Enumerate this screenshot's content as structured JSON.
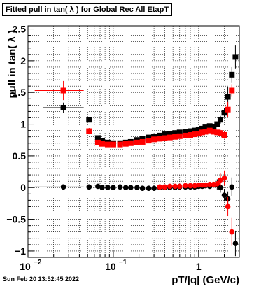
{
  "title": "Fitted pull in tan( λ ) for Global Rec All EtapT",
  "footer": "Sun Feb 20 13:52:45 2022",
  "chart_data": {
    "type": "scatter",
    "title": "Fitted pull in tan( λ ) for Global Rec All EtapT",
    "xlabel": "pT/|q| (GeV/c)",
    "ylabel": "pull in tan( λ )",
    "xscale": "log",
    "xlim": [
      0.01,
      3.0
    ],
    "ylim": [
      -1.1,
      2.55
    ],
    "grid": true,
    "legend": "none",
    "x_ticks": [
      {
        "value": 0.01,
        "label": "10"
      },
      {
        "value": 0.1,
        "label": "10"
      },
      {
        "value": 1,
        "label": "1"
      }
    ],
    "x_tick_exponents": [
      {
        "value": 0.01,
        "label": "−2"
      },
      {
        "value": 0.1,
        "label": "−1"
      }
    ],
    "y_ticks": [
      {
        "value": -1,
        "label": "−1"
      },
      {
        "value": -0.5,
        "label": "−0.5"
      },
      {
        "value": 0,
        "label": "0"
      },
      {
        "value": 0.5,
        "label": "0.5"
      },
      {
        "value": 1,
        "label": "1"
      },
      {
        "value": 1.5,
        "label": "1.5"
      },
      {
        "value": 2,
        "label": "2"
      },
      {
        "value": 2.5,
        "label": "2.5"
      }
    ],
    "colors": {
      "black_series": "#000000",
      "red_series": "#ff0000"
    },
    "series": [
      {
        "color": "#000000",
        "marker": "square",
        "points": [
          {
            "x": 0.026,
            "y": 1.26,
            "xerr": [
              0.015,
              0.045
            ],
            "yerr": 0.08
          },
          {
            "x": 0.052,
            "y": 1.07,
            "yerr": 0.04
          },
          {
            "x": 0.066,
            "y": 0.78,
            "yerr": 0.02
          },
          {
            "x": 0.074,
            "y": 0.74
          },
          {
            "x": 0.086,
            "y": 0.71
          },
          {
            "x": 0.1,
            "y": 0.7
          },
          {
            "x": 0.12,
            "y": 0.7
          },
          {
            "x": 0.14,
            "y": 0.71
          },
          {
            "x": 0.16,
            "y": 0.72
          },
          {
            "x": 0.19,
            "y": 0.75
          },
          {
            "x": 0.22,
            "y": 0.77
          },
          {
            "x": 0.26,
            "y": 0.79
          },
          {
            "x": 0.3,
            "y": 0.8
          },
          {
            "x": 0.35,
            "y": 0.82
          },
          {
            "x": 0.4,
            "y": 0.84
          },
          {
            "x": 0.46,
            "y": 0.85
          },
          {
            "x": 0.53,
            "y": 0.86
          },
          {
            "x": 0.6,
            "y": 0.87
          },
          {
            "x": 0.7,
            "y": 0.88
          },
          {
            "x": 0.8,
            "y": 0.89
          },
          {
            "x": 0.9,
            "y": 0.9
          },
          {
            "x": 1.0,
            "y": 0.91
          },
          {
            "x": 1.1,
            "y": 0.93
          },
          {
            "x": 1.2,
            "y": 0.95
          },
          {
            "x": 1.35,
            "y": 0.97
          },
          {
            "x": 1.5,
            "y": 0.96
          },
          {
            "x": 1.65,
            "y": 1.0
          },
          {
            "x": 1.8,
            "y": 1.07,
            "yerr": 0.06
          },
          {
            "x": 2.0,
            "y": 1.18,
            "yerr": 0.08
          },
          {
            "x": 2.2,
            "y": 1.43,
            "yerr": 0.15
          },
          {
            "x": 2.45,
            "y": 1.78,
            "yerr": 0.12
          },
          {
            "x": 2.7,
            "y": 2.06,
            "yerr": 0.18
          }
        ]
      },
      {
        "color": "#ff0000",
        "marker": "square",
        "points": [
          {
            "x": 0.026,
            "y": 1.53,
            "xerr": [
              0.012,
              0.045
            ],
            "yerr": 0.15
          },
          {
            "x": 0.052,
            "y": 0.89,
            "yerr": 0.05
          },
          {
            "x": 0.066,
            "y": 0.71,
            "yerr": 0.03
          },
          {
            "x": 0.074,
            "y": 0.69
          },
          {
            "x": 0.086,
            "y": 0.68
          },
          {
            "x": 0.1,
            "y": 0.68
          },
          {
            "x": 0.12,
            "y": 0.68
          },
          {
            "x": 0.14,
            "y": 0.69
          },
          {
            "x": 0.16,
            "y": 0.7
          },
          {
            "x": 0.19,
            "y": 0.71
          },
          {
            "x": 0.22,
            "y": 0.72
          },
          {
            "x": 0.26,
            "y": 0.74
          },
          {
            "x": 0.3,
            "y": 0.76
          },
          {
            "x": 0.35,
            "y": 0.77
          },
          {
            "x": 0.4,
            "y": 0.78
          },
          {
            "x": 0.46,
            "y": 0.79
          },
          {
            "x": 0.53,
            "y": 0.8
          },
          {
            "x": 0.6,
            "y": 0.81
          },
          {
            "x": 0.7,
            "y": 0.82
          },
          {
            "x": 0.8,
            "y": 0.83
          },
          {
            "x": 0.9,
            "y": 0.84
          },
          {
            "x": 1.0,
            "y": 0.85
          },
          {
            "x": 1.1,
            "y": 0.87
          },
          {
            "x": 1.2,
            "y": 0.88
          },
          {
            "x": 1.35,
            "y": 0.9
          },
          {
            "x": 1.5,
            "y": 0.88
          },
          {
            "x": 1.65,
            "y": 0.87
          },
          {
            "x": 1.8,
            "y": 0.86,
            "yerr": 0.05
          },
          {
            "x": 2.0,
            "y": 0.83,
            "yerr": 0.06
          },
          {
            "x": 2.2,
            "y": 1.23,
            "yerr": 0.12
          },
          {
            "x": 2.45,
            "y": 1.53,
            "yerr": 0.1
          }
        ]
      },
      {
        "color": "#000000",
        "marker": "circle",
        "points": [
          {
            "x": 0.026,
            "y": 0.01,
            "xerr": [
              0.012,
              0.045
            ],
            "yerr": 0.03
          },
          {
            "x": 0.052,
            "y": 0.01
          },
          {
            "x": 0.066,
            "y": 0.02
          },
          {
            "x": 0.074,
            "y": 0.0
          },
          {
            "x": 0.086,
            "y": 0.0
          },
          {
            "x": 0.1,
            "y": 0.0
          },
          {
            "x": 0.12,
            "y": 0.01
          },
          {
            "x": 0.14,
            "y": 0.0
          },
          {
            "x": 0.16,
            "y": 0.0
          },
          {
            "x": 0.19,
            "y": 0.0
          },
          {
            "x": 0.22,
            "y": -0.01
          },
          {
            "x": 0.26,
            "y": -0.01
          },
          {
            "x": 0.3,
            "y": -0.01
          },
          {
            "x": 0.35,
            "y": 0.0
          },
          {
            "x": 0.4,
            "y": 0.0
          },
          {
            "x": 0.46,
            "y": 0.0
          },
          {
            "x": 0.53,
            "y": 0.0
          },
          {
            "x": 0.6,
            "y": 0.01
          },
          {
            "x": 0.7,
            "y": 0.01
          },
          {
            "x": 0.8,
            "y": 0.01
          },
          {
            "x": 0.9,
            "y": 0.01
          },
          {
            "x": 1.0,
            "y": 0.02
          },
          {
            "x": 1.1,
            "y": 0.02
          },
          {
            "x": 1.2,
            "y": 0.03
          },
          {
            "x": 1.35,
            "y": 0.02
          },
          {
            "x": 1.5,
            "y": 0.04
          },
          {
            "x": 1.65,
            "y": 0.05,
            "yerr": 0.08
          },
          {
            "x": 1.8,
            "y": 0.0,
            "yerr": 0.08
          },
          {
            "x": 2.0,
            "y": -0.12,
            "yerr": 0.1
          },
          {
            "x": 2.2,
            "y": -0.18,
            "yerr": 0.12
          },
          {
            "x": 2.45,
            "y": 0.01,
            "yerr": 0.15
          },
          {
            "x": 2.7,
            "y": -0.88,
            "yerr": 0.2
          }
        ]
      },
      {
        "color": "#ff0000",
        "marker": "circle",
        "points": [
          {
            "x": 0.35,
            "y": 0.01
          },
          {
            "x": 0.4,
            "y": 0.01
          },
          {
            "x": 0.46,
            "y": 0.02
          },
          {
            "x": 0.53,
            "y": 0.02
          },
          {
            "x": 0.6,
            "y": 0.02
          },
          {
            "x": 0.7,
            "y": 0.03
          },
          {
            "x": 0.8,
            "y": 0.03
          },
          {
            "x": 0.9,
            "y": 0.03
          },
          {
            "x": 1.0,
            "y": 0.04
          },
          {
            "x": 1.1,
            "y": 0.04
          },
          {
            "x": 1.2,
            "y": 0.04
          },
          {
            "x": 1.35,
            "y": 0.05
          },
          {
            "x": 1.5,
            "y": 0.05
          },
          {
            "x": 1.65,
            "y": 0.06
          },
          {
            "x": 1.8,
            "y": 0.12,
            "yerr": 0.1
          },
          {
            "x": 2.0,
            "y": 0.15,
            "yerr": 0.12
          },
          {
            "x": 2.2,
            "y": -0.3,
            "yerr": 0.15
          },
          {
            "x": 2.45,
            "y": -0.7,
            "yerr": 0.22
          }
        ]
      }
    ]
  }
}
